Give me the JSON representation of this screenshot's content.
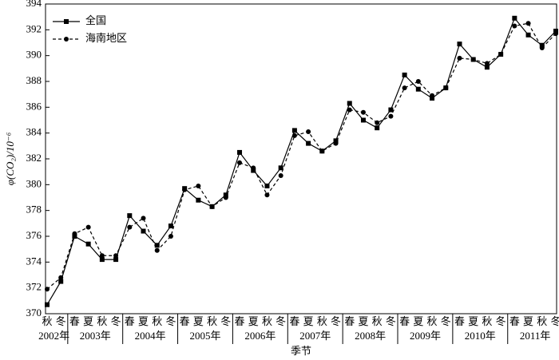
{
  "chart_data": {
    "type": "line",
    "y_label": "φ(CO₂)/10⁻⁶",
    "x_label": "季节",
    "groups": [
      {
        "name": "2002年",
        "categories": [
          "秋",
          "冬"
        ]
      },
      {
        "name": "2003年",
        "categories": [
          "春",
          "夏",
          "秋",
          "冬"
        ]
      },
      {
        "name": "2004年",
        "categories": [
          "春",
          "夏",
          "秋",
          "冬"
        ]
      },
      {
        "name": "2005年",
        "categories": [
          "春",
          "夏",
          "秋",
          "冬"
        ]
      },
      {
        "name": "2006年",
        "categories": [
          "春",
          "夏",
          "秋",
          "冬"
        ]
      },
      {
        "name": "2007年",
        "categories": [
          "春",
          "夏",
          "秋",
          "冬"
        ]
      },
      {
        "name": "2008年",
        "categories": [
          "春",
          "夏",
          "秋",
          "冬"
        ]
      },
      {
        "name": "2009年",
        "categories": [
          "春",
          "夏",
          "秋",
          "冬"
        ]
      },
      {
        "name": "2010年",
        "categories": [
          "春",
          "夏",
          "秋",
          "冬"
        ]
      },
      {
        "name": "2011年",
        "categories": [
          "春",
          "夏",
          "秋",
          "冬"
        ]
      }
    ],
    "series": [
      {
        "name": "全国",
        "color": "#000000",
        "marker": "square",
        "dash": "solid",
        "values": [
          370.7,
          372.5,
          376.0,
          375.4,
          374.2,
          374.2,
          377.6,
          376.4,
          375.3,
          376.8,
          379.7,
          378.8,
          378.3,
          379.2,
          382.5,
          381.1,
          379.9,
          381.3,
          384.2,
          383.2,
          382.6,
          383.4,
          386.3,
          385.0,
          384.4,
          385.8,
          388.5,
          387.4,
          386.7,
          387.5,
          390.9,
          389.7,
          389.1,
          390.1,
          392.9,
          391.6,
          390.8,
          391.9
        ]
      },
      {
        "name": "海南地区",
        "color": "#000000",
        "marker": "circle",
        "dash": "dashed",
        "values": [
          371.9,
          372.8,
          376.2,
          376.7,
          374.5,
          374.5,
          376.7,
          377.4,
          374.9,
          376.0,
          379.6,
          379.9,
          378.3,
          379.0,
          381.7,
          381.3,
          379.2,
          380.7,
          383.8,
          384.1,
          382.6,
          383.2,
          385.8,
          385.6,
          384.8,
          385.3,
          387.5,
          388.0,
          386.9,
          387.5,
          389.8,
          389.7,
          389.4,
          390.1,
          392.3,
          392.5,
          390.6,
          391.7
        ]
      }
    ],
    "ylim": [
      370,
      394
    ],
    "yticks": [
      370,
      372,
      374,
      376,
      378,
      380,
      382,
      384,
      386,
      388,
      390,
      392,
      394
    ],
    "legend": "upper left"
  }
}
